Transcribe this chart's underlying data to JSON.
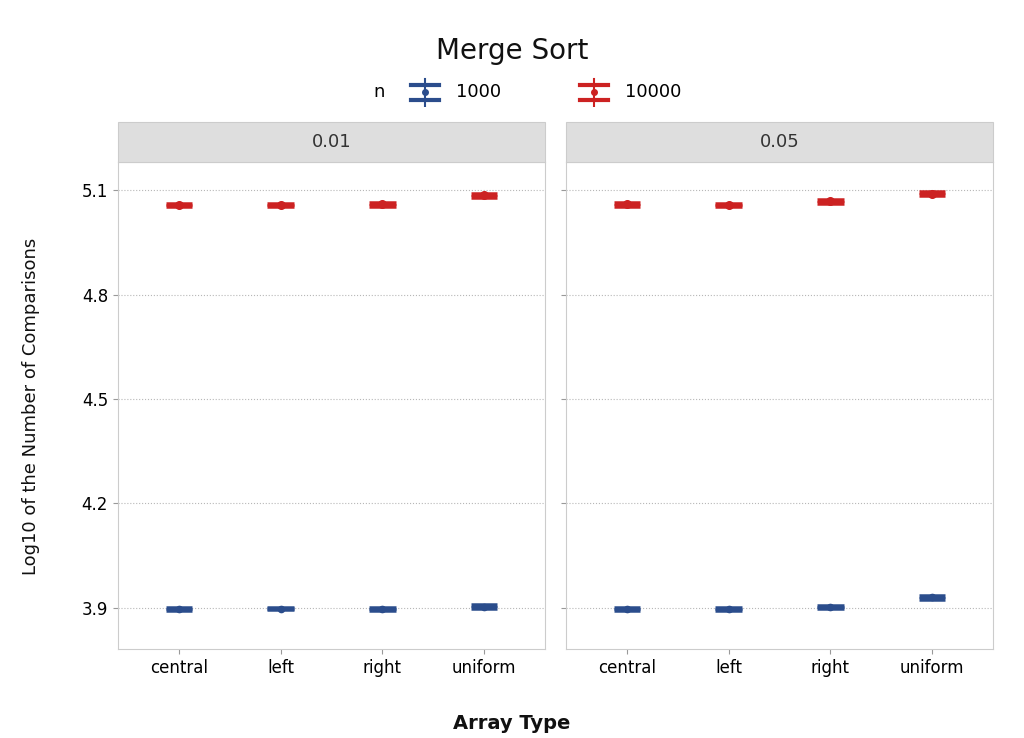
{
  "title": "Merge Sort",
  "xlabel": "Array Type",
  "ylabel": "Log10 of the Number of Comparisons",
  "facets": [
    "0.01",
    "0.05"
  ],
  "array_types": [
    "central",
    "left",
    "right",
    "uniform"
  ],
  "n1000_color": "#2b4d8c",
  "n10000_color": "#cc2222",
  "background_color": "#ffffff",
  "plot_bg_color": "#ffffff",
  "facet_bg_color": "#dedede",
  "grid_color": "#b0b0b0",
  "border_color": "#cccccc",
  "yticks": [
    3.9,
    4.2,
    4.5,
    4.8,
    5.1
  ],
  "ylim": [
    3.78,
    5.18
  ],
  "data": {
    "0.01": {
      "n1000": {
        "central": {
          "median": 3.897,
          "q1": 3.894,
          "q3": 3.9,
          "whislo": 3.892,
          "whishi": 3.902
        },
        "left": {
          "median": 3.897,
          "q1": 3.895,
          "q3": 3.9,
          "whislo": 3.893,
          "whishi": 3.902
        },
        "right": {
          "median": 3.896,
          "q1": 3.893,
          "q3": 3.899,
          "whislo": 3.891,
          "whishi": 3.901
        },
        "uniform": {
          "median": 3.903,
          "q1": 3.898,
          "q3": 3.908,
          "whislo": 3.895,
          "whishi": 3.912
        }
      },
      "n10000": {
        "central": {
          "median": 5.058,
          "q1": 5.055,
          "q3": 5.061,
          "whislo": 5.053,
          "whishi": 5.063
        },
        "left": {
          "median": 5.057,
          "q1": 5.054,
          "q3": 5.06,
          "whislo": 5.052,
          "whishi": 5.062
        },
        "right": {
          "median": 5.059,
          "q1": 5.056,
          "q3": 5.062,
          "whislo": 5.053,
          "whishi": 5.064
        },
        "uniform": {
          "median": 5.085,
          "q1": 5.081,
          "q3": 5.089,
          "whislo": 5.078,
          "whishi": 5.092
        }
      }
    },
    "0.05": {
      "n1000": {
        "central": {
          "median": 3.897,
          "q1": 3.894,
          "q3": 3.9,
          "whislo": 3.892,
          "whishi": 3.902
        },
        "left": {
          "median": 3.897,
          "q1": 3.894,
          "q3": 3.899,
          "whislo": 3.892,
          "whishi": 3.901
        },
        "right": {
          "median": 3.901,
          "q1": 3.898,
          "q3": 3.904,
          "whislo": 3.896,
          "whishi": 3.907
        },
        "uniform": {
          "median": 3.93,
          "q1": 3.925,
          "q3": 3.935,
          "whislo": 3.922,
          "whishi": 3.938
        }
      },
      "n10000": {
        "central": {
          "median": 5.059,
          "q1": 5.056,
          "q3": 5.062,
          "whislo": 5.053,
          "whishi": 5.065
        },
        "left": {
          "median": 5.057,
          "q1": 5.054,
          "q3": 5.06,
          "whislo": 5.051,
          "whishi": 5.062
        },
        "right": {
          "median": 5.068,
          "q1": 5.064,
          "q3": 5.072,
          "whislo": 5.061,
          "whishi": 5.075
        },
        "uniform": {
          "median": 5.09,
          "q1": 5.086,
          "q3": 5.094,
          "whislo": 5.083,
          "whishi": 5.097
        }
      }
    }
  }
}
